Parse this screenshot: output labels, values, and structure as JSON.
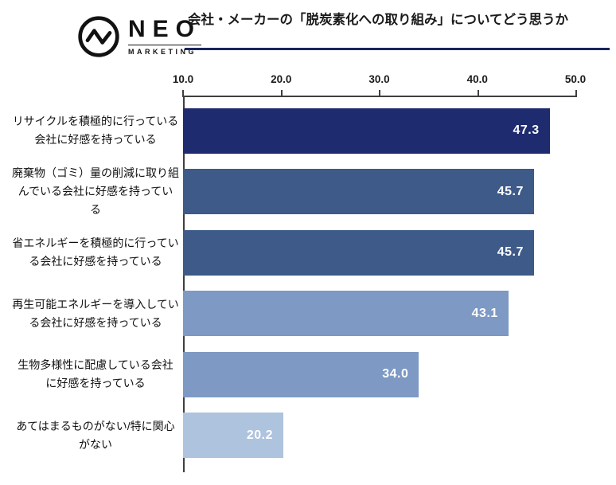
{
  "header": {
    "logo": {
      "name": "NEO",
      "sub": "MARKETING"
    },
    "title": "会社・メーカーの「脱炭素化への取り組み」についてどう思うか"
  },
  "chart_data": {
    "type": "bar",
    "orientation": "horizontal",
    "title": "会社・メーカーの「脱炭素化への取り組み」についてどう思うか",
    "categories": [
      "リサイクルを積極的に行っている\n会社に好感を持っている",
      "廃棄物（ゴミ）量の削減に取り組\nんでいる会社に好感を持ってい\nる",
      "省エネルギーを積極的に行ってい\nる会社に好感を持っている",
      "再生可能エネルギーを導入してい\nる会社に好感を持っている",
      "生物多様性に配慮している会社\nに好感を持っている",
      "あてはまるものがない/特に関心\nがない"
    ],
    "values": [
      47.3,
      45.7,
      45.7,
      43.1,
      34.0,
      20.2
    ],
    "value_labels": [
      "47.3",
      "45.7",
      "45.7",
      "43.1",
      "34.0",
      "20.2"
    ],
    "bar_colors": [
      "#1e2b6e",
      "#3d5a88",
      "#3d5a88",
      "#7d99c4",
      "#7d99c4",
      "#aec3de"
    ],
    "xlim": [
      10,
      50
    ],
    "x_ticks": [
      "10.0",
      "20.0",
      "30.0",
      "40.0",
      "50.0"
    ],
    "axis_position": "top",
    "grid": false,
    "legend": false,
    "value_label_position": "inside-end"
  }
}
